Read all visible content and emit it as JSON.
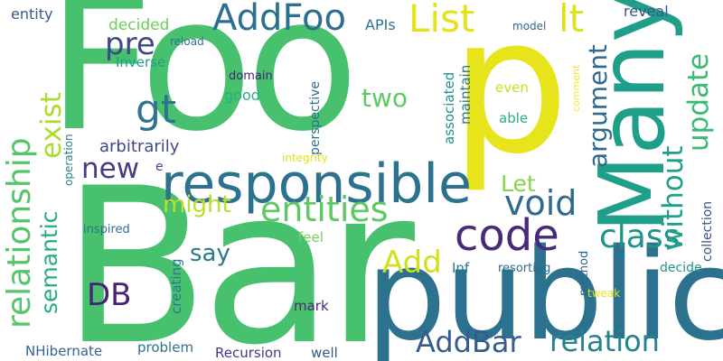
{
  "words": [
    {
      "text": "Foo",
      "color": "#48c16e"
    },
    {
      "text": "Bar",
      "color": "#48c16e"
    },
    {
      "text": "public",
      "color": "#2c718e"
    },
    {
      "text": "p",
      "color": "#e8e41b"
    },
    {
      "text": "Many",
      "color": "#1f9e89"
    },
    {
      "text": "responsible",
      "color": "#2c728e"
    },
    {
      "text": "List",
      "color": "#e2e418"
    },
    {
      "text": "lt",
      "color": "#dde318"
    },
    {
      "text": "AddFoo",
      "color": "#2d6f8e"
    },
    {
      "text": "code",
      "color": "#472a7a"
    },
    {
      "text": "relationship",
      "color": "#54c568"
    },
    {
      "text": "entities",
      "color": "#5ec962"
    },
    {
      "text": "class",
      "color": "#20928c"
    },
    {
      "text": "void",
      "color": "#30698e"
    },
    {
      "text": "AddBar",
      "color": "#365c8d"
    },
    {
      "text": "relation",
      "color": "#26828e"
    },
    {
      "text": "update",
      "color": "#3bbb75"
    },
    {
      "text": "without",
      "color": "#1fa088"
    },
    {
      "text": "gt",
      "color": "#2b758e"
    },
    {
      "text": "exist",
      "color": "#addc30"
    },
    {
      "text": "pre",
      "color": "#3e4989"
    },
    {
      "text": "Add",
      "color": "#d0e11c"
    },
    {
      "text": "DB",
      "color": "#482374"
    },
    {
      "text": "new",
      "color": "#433d84"
    },
    {
      "text": "argument",
      "color": "#31688e"
    },
    {
      "text": "two",
      "color": "#5ec962"
    },
    {
      "text": "might",
      "color": "#bddf26"
    },
    {
      "text": "say",
      "color": "#2a788e"
    },
    {
      "text": "semantic",
      "color": "#27ad81"
    },
    {
      "text": "Let",
      "color": "#86d549"
    },
    {
      "text": "arbitrarily",
      "color": "#3f4788"
    },
    {
      "text": "entity",
      "color": "#38598c"
    },
    {
      "text": "decided",
      "color": "#6ccd5a"
    },
    {
      "text": "Inverse",
      "color": "#1f9e89"
    },
    {
      "text": "APIs",
      "color": "#2a768e"
    },
    {
      "text": "reload",
      "color": "#2d708e"
    },
    {
      "text": "model",
      "color": "#32658e"
    },
    {
      "text": "reveal",
      "color": "#39558c"
    },
    {
      "text": "domain",
      "color": "#482173"
    },
    {
      "text": "good",
      "color": "#28ae80"
    },
    {
      "text": "perspective",
      "color": "#2c728e"
    },
    {
      "text": "associated",
      "color": "#20938c"
    },
    {
      "text": "maintain",
      "color": "#2a768e"
    },
    {
      "text": "even",
      "color": "#c8e020"
    },
    {
      "text": "able",
      "color": "#29af7f"
    },
    {
      "text": "comment",
      "color": "#fde725"
    },
    {
      "text": "collection",
      "color": "#3b518b"
    },
    {
      "text": "operation",
      "color": "#287d8e"
    },
    {
      "text": "integrity",
      "color": "#dde318"
    },
    {
      "text": "e",
      "color": "#3f4889"
    },
    {
      "text": "creating",
      "color": "#2a788e"
    },
    {
      "text": "feel",
      "color": "#74d055"
    },
    {
      "text": "inspired",
      "color": "#2d708e"
    },
    {
      "text": "Inf",
      "color": "#2a788e"
    },
    {
      "text": "resorting",
      "color": "#2f6b8e"
    },
    {
      "text": "method",
      "color": "#32658e"
    },
    {
      "text": "decide",
      "color": "#1f968b"
    },
    {
      "text": "tweak",
      "color": "#e5e419"
    },
    {
      "text": "mark",
      "color": "#482878"
    },
    {
      "text": "NHibernate",
      "color": "#33638d"
    },
    {
      "text": "problem",
      "color": "#2c728e"
    },
    {
      "text": "Recursion",
      "color": "#443a83"
    },
    {
      "text": "well",
      "color": "#39568c"
    }
  ]
}
